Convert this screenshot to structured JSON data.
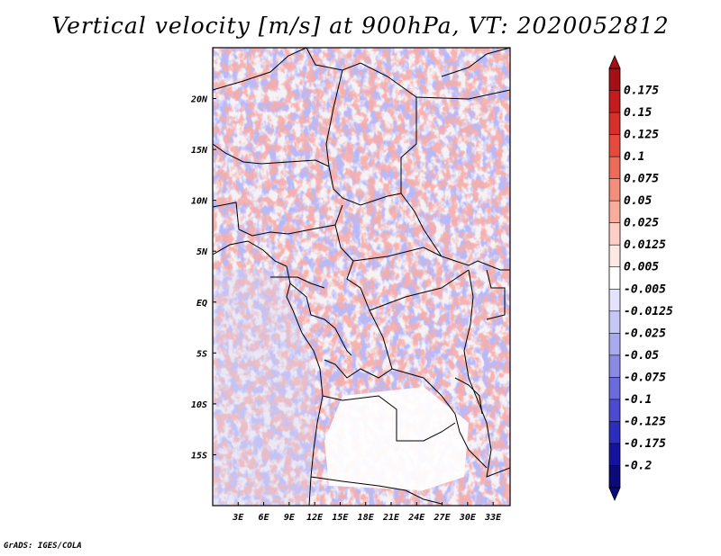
{
  "title": "Vertical velocity [m/s] at 900hPa, VT: 2020052812",
  "footer": "GrADS: IGES/COLA",
  "map": {
    "region": "Central Africa",
    "lon_range": [
      0,
      35
    ],
    "lat_range": [
      -20,
      25
    ],
    "x_ticks": [
      "3E",
      "6E",
      "9E",
      "12E",
      "15E",
      "18E",
      "21E",
      "24E",
      "27E",
      "30E",
      "33E"
    ],
    "x_tick_values": [
      3,
      6,
      9,
      12,
      15,
      18,
      21,
      24,
      27,
      30,
      33
    ],
    "y_ticks": [
      "20N",
      "15N",
      "10N",
      "5N",
      "EQ",
      "5S",
      "10S",
      "15S"
    ],
    "y_tick_values": [
      20,
      15,
      10,
      5,
      0,
      -5,
      -10,
      -15
    ]
  },
  "colorbar": {
    "labels": [
      "0.175",
      "0.15",
      "0.125",
      "0.1",
      "0.075",
      "0.05",
      "0.025",
      "0.0125",
      "0.005",
      "-0.005",
      "-0.0125",
      "-0.025",
      "-0.05",
      "-0.075",
      "-0.1",
      "-0.125",
      "-0.175",
      "-0.2"
    ],
    "colors": [
      "#a50f15",
      "#c41b1f",
      "#d7302a",
      "#e54a3c",
      "#ee6b5a",
      "#f38d7c",
      "#f7ad9e",
      "#fbcfc3",
      "#fde9e3",
      "#ffffff",
      "#e3e3fb",
      "#c7c7f5",
      "#a9a9ee",
      "#8a8ae6",
      "#6b6bdc",
      "#4b4bcf",
      "#2c2cbd",
      "#1313a0",
      "#0a0a7a"
    ]
  }
}
